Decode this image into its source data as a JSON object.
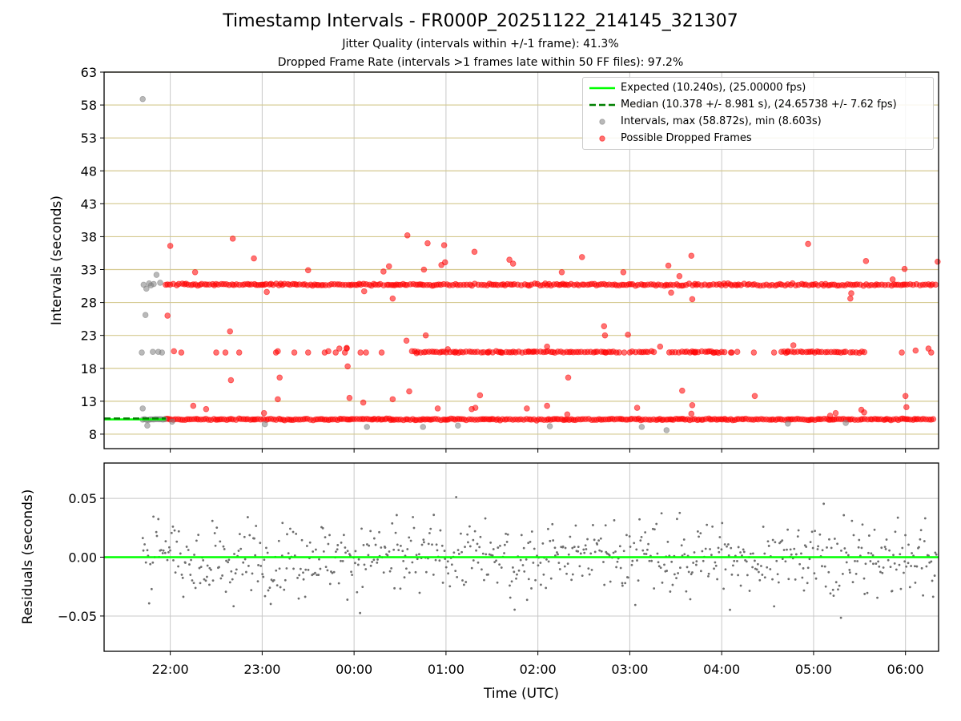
{
  "titles": {
    "main": "Timestamp Intervals - FR000P_20251122_214145_321307",
    "sub1": "Jitter Quality (intervals within +/-1 frame): 41.3%",
    "sub2": "Dropped Frame Rate (intervals >1 frames late within 50 FF files): 97.2%"
  },
  "legend": {
    "expected": "Expected (10.240s), (25.00000 fps)",
    "median": "Median (10.378 +/- 8.981 s), (24.65738 +/- 7.62 fps)",
    "intervals": "Intervals, max (58.872s), min (8.603s)",
    "dropped": "Possible Dropped Frames"
  },
  "colors": {
    "expected": "#00ff00",
    "median": "#008000",
    "intervals": "#808080",
    "dropped": "#ff0000",
    "hgrid_top": "#d4c98f",
    "vgrid": "#c8c8c8",
    "residual_points": "#6e6e6e"
  },
  "chart_data": [
    {
      "type": "scatter",
      "panel": "top",
      "xlabel": "Time (UTC)",
      "ylabel": "Intervals (seconds)",
      "xlim_hours": [
        -2.72,
        6.36
      ],
      "ylim": [
        5.8,
        63
      ],
      "yticks": [
        "8",
        "13",
        "18",
        "23",
        "28",
        "33",
        "38",
        "43",
        "48",
        "53",
        "58",
        "63"
      ],
      "xticks": [
        "22:00",
        "23:00",
        "00:00",
        "01:00",
        "02:00",
        "03:00",
        "04:00",
        "05:00",
        "06:00"
      ],
      "expected_interval": 10.24,
      "median_interval": 10.378,
      "interval_levels": [
        10.24,
        20.48,
        30.72
      ],
      "series": [
        {
          "name": "Intervals",
          "points": [
            [
              -2.3,
              58.9
            ],
            [
              -2.31,
              20.4
            ],
            [
              -2.29,
              30.7
            ],
            [
              -2.27,
              26.1
            ],
            [
              -2.25,
              9.3
            ],
            [
              -2.23,
              30.9
            ],
            [
              -2.21,
              30.6
            ],
            [
              -2.19,
              20.5
            ],
            [
              -2.15,
              32.2
            ],
            [
              -2.13,
              20.5
            ],
            [
              -2.11,
              31.0
            ],
            [
              -2.09,
              20.4
            ],
            [
              -2.3,
              11.9
            ],
            [
              -2.26,
              30.1
            ],
            [
              -2.18,
              30.8
            ],
            [
              -1.98,
              9.9
            ],
            [
              -0.97,
              9.5
            ],
            [
              0.14,
              9.1
            ],
            [
              0.75,
              9.1
            ],
            [
              1.13,
              9.3
            ],
            [
              2.13,
              9.2
            ],
            [
              3.13,
              9.1
            ],
            [
              3.4,
              8.6
            ],
            [
              4.72,
              9.6
            ],
            [
              5.35,
              9.7
            ]
          ]
        },
        {
          "name": "Possible Dropped Frames",
          "isolated": [
            [
              -2.0,
              36.6
            ],
            [
              -2.03,
              26.0
            ],
            [
              -1.96,
              20.6
            ],
            [
              -1.88,
              20.4
            ],
            [
              -1.73,
              32.6
            ],
            [
              -1.75,
              12.3
            ],
            [
              -1.61,
              11.8
            ],
            [
              -1.5,
              20.4
            ],
            [
              -1.4,
              20.4
            ],
            [
              -1.35,
              23.6
            ],
            [
              -1.34,
              16.2
            ],
            [
              -1.32,
              37.7
            ],
            [
              -1.25,
              20.4
            ],
            [
              -1.09,
              34.7
            ],
            [
              -0.95,
              29.6
            ],
            [
              -0.98,
              11.2
            ],
            [
              -0.85,
              20.4
            ],
            [
              -0.83,
              20.6
            ],
            [
              -0.81,
              16.6
            ],
            [
              -0.83,
              13.3
            ],
            [
              -0.65,
              20.4
            ],
            [
              -0.5,
              32.9
            ],
            [
              -0.5,
              20.4
            ],
            [
              -0.32,
              20.4
            ],
            [
              -0.28,
              20.6
            ],
            [
              -0.2,
              20.4
            ],
            [
              -0.08,
              21.0
            ],
            [
              -0.07,
              18.3
            ],
            [
              -0.05,
              13.5
            ],
            [
              0.07,
              20.4
            ],
            [
              -0.1,
              20.4
            ],
            [
              -0.08,
              21.1
            ],
            [
              -0.16,
              21.0
            ],
            [
              0.1,
              12.8
            ],
            [
              0.11,
              29.7
            ],
            [
              0.13,
              20.4
            ],
            [
              0.3,
              20.4
            ],
            [
              0.32,
              32.7
            ],
            [
              0.38,
              33.5
            ],
            [
              0.42,
              28.6
            ],
            [
              0.42,
              13.3
            ],
            [
              0.58,
              38.2
            ],
            [
              0.57,
              22.2
            ],
            [
              0.6,
              14.5
            ],
            [
              0.63,
              20.6
            ],
            [
              0.68,
              20.3
            ],
            [
              0.78,
              23.0
            ],
            [
              0.8,
              37.0
            ],
            [
              0.76,
              33.0
            ],
            [
              0.91,
              11.9
            ],
            [
              0.95,
              33.7
            ],
            [
              0.98,
              36.7
            ],
            [
              0.99,
              34.1
            ],
            [
              1.02,
              20.9
            ],
            [
              1.1,
              20.4
            ],
            [
              1.28,
              11.8
            ],
            [
              1.31,
              35.7
            ],
            [
              1.32,
              12.0
            ],
            [
              1.37,
              13.9
            ],
            [
              1.46,
              20.4
            ],
            [
              1.6,
              20.4
            ],
            [
              1.69,
              34.5
            ],
            [
              1.73,
              33.9
            ],
            [
              1.9,
              20.5
            ],
            [
              1.88,
              11.9
            ],
            [
              1.95,
              20.5
            ],
            [
              2.1,
              21.3
            ],
            [
              2.1,
              12.3
            ],
            [
              2.26,
              32.6
            ],
            [
              2.33,
              16.6
            ],
            [
              2.32,
              11.0
            ],
            [
              2.48,
              34.9
            ],
            [
              2.72,
              24.4
            ],
            [
              2.73,
              23.0
            ],
            [
              2.74,
              20.4
            ],
            [
              2.94,
              20.4
            ],
            [
              2.93,
              32.6
            ],
            [
              2.98,
              23.1
            ],
            [
              3.08,
              12.0
            ],
            [
              3.33,
              21.3
            ],
            [
              3.42,
              33.6
            ],
            [
              3.45,
              29.5
            ],
            [
              3.54,
              32.0
            ],
            [
              3.57,
              14.6
            ],
            [
              3.67,
              35.1
            ],
            [
              3.68,
              28.5
            ],
            [
              3.68,
              12.4
            ],
            [
              3.67,
              11.1
            ],
            [
              3.71,
              20.4
            ],
            [
              3.92,
              20.4
            ],
            [
              4.1,
              20.4
            ],
            [
              4.11,
              20.4
            ],
            [
              4.17,
              20.5
            ],
            [
              4.35,
              20.4
            ],
            [
              4.36,
              13.8
            ],
            [
              4.57,
              20.4
            ],
            [
              4.78,
              21.5
            ],
            [
              4.72,
              20.6
            ],
            [
              4.94,
              36.9
            ],
            [
              5.18,
              10.8
            ],
            [
              5.24,
              11.2
            ],
            [
              5.4,
              28.6
            ],
            [
              5.41,
              29.4
            ],
            [
              5.52,
              11.7
            ],
            [
              5.55,
              11.3
            ],
            [
              5.57,
              34.3
            ],
            [
              5.86,
              31.5
            ],
            [
              5.99,
              33.1
            ],
            [
              5.96,
              20.4
            ],
            [
              6.0,
              13.8
            ],
            [
              6.01,
              12.1
            ],
            [
              6.11,
              20.7
            ],
            [
              6.25,
              21.0
            ],
            [
              6.28,
              20.4
            ],
            [
              6.35,
              34.2
            ]
          ],
          "bands": [
            {
              "y": 10.24,
              "x_from": -2.05,
              "x_to": 6.33,
              "step": 0.024,
              "jitter": 0.2
            },
            {
              "y": 30.7,
              "x_from": -2.05,
              "x_to": 6.33,
              "step": 0.028,
              "jitter": 0.25
            },
            {
              "y": 20.48,
              "x_from": 0.66,
              "x_to": 2.9,
              "step": 0.03,
              "jitter": 0.2
            },
            {
              "y": 20.48,
              "x_from": 3.0,
              "x_to": 3.27,
              "step": 0.03,
              "jitter": 0.2
            },
            {
              "y": 20.48,
              "x_from": 3.43,
              "x_to": 4.05,
              "step": 0.03,
              "jitter": 0.2
            },
            {
              "y": 20.48,
              "x_from": 4.65,
              "x_to": 5.37,
              "step": 0.03,
              "jitter": 0.2
            },
            {
              "y": 20.48,
              "x_from": 5.4,
              "x_to": 5.56,
              "step": 0.03,
              "jitter": 0.2
            }
          ]
        }
      ]
    },
    {
      "type": "scatter",
      "panel": "bottom",
      "xlabel": "Time (UTC)",
      "ylabel": "Residuals (seconds)",
      "xlim_hours": [
        -2.72,
        6.36
      ],
      "ylim": [
        -0.08,
        0.08
      ],
      "yticks": [
        "−0.05",
        "0.00",
        "0.05"
      ],
      "ytick_values": [
        -0.05,
        0.0,
        0.05
      ],
      "xticks": [
        "22:00",
        "23:00",
        "00:00",
        "01:00",
        "02:00",
        "03:00",
        "04:00",
        "05:00",
        "06:00"
      ],
      "residual_points": {
        "count": 720,
        "x_from": -2.3,
        "x_to": 6.35,
        "spread": 0.08,
        "typical_sd": 0.03
      },
      "baseline": 0.0
    }
  ]
}
